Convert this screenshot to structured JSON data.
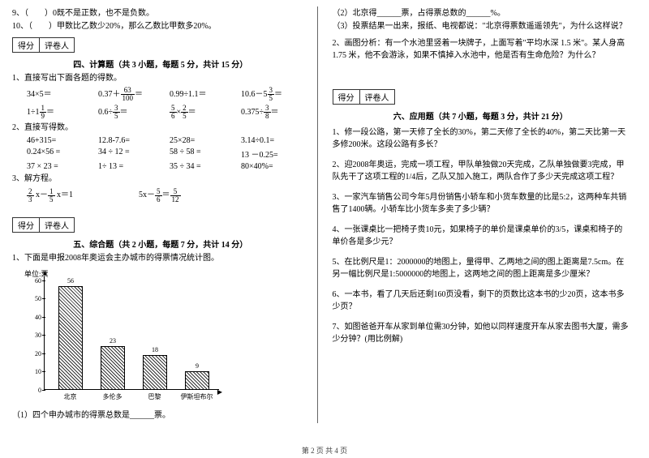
{
  "left": {
    "q9": "9、（　　）0既不是正数，也不是负数。",
    "q10": "10、（　　）甲数比乙数少20%，那么乙数比甲数多20%。",
    "score_label1": "得分",
    "score_label2": "评卷人",
    "section4": "四、计算题（共 3 小题，每题 5 分，共计 15 分）",
    "s4_1": "1、直接写出下面各题的得数。",
    "calc1": {
      "a": "34×5＝",
      "b_pre": "0.37＋",
      "b_frac_n": "63",
      "b_frac_d": "100",
      "b_eq": "＝",
      "c": "0.99÷1.1＝",
      "d_pre": "10.6－5",
      "d_frac_n": "3",
      "d_frac_d": "5",
      "d_eq": "＝"
    },
    "calc2": {
      "a_pre": "1÷1",
      "a_frac_n": "1",
      "a_frac_d": "9",
      "a_eq": "＝",
      "b_pre": "0.6÷",
      "b_frac_n": "3",
      "b_frac_d": "5",
      "b_eq": "＝",
      "c_f1n": "5",
      "c_f1d": "6",
      "c_mid": "×",
      "c_f2n": "2",
      "c_f2d": "5",
      "c_eq": "＝",
      "d_pre": "0.375÷",
      "d_frac_n": "3",
      "d_frac_d": "8",
      "d_eq": "＝"
    },
    "s4_2": "2、直接写得数。",
    "rows2": [
      [
        "46+315=",
        "12.8-7.6=",
        "25×28=",
        "3.14÷0.1="
      ],
      [
        "0.24×56 =",
        "34 ÷ 12 =",
        "58 ÷ 58 =",
        "13 －0.25="
      ],
      [
        "37 × 23 =",
        "1÷ 13 =",
        "35 ÷ 34 =",
        "80×40%="
      ]
    ],
    "s4_3": "3、解方程。",
    "eq3a_f1n": "2",
    "eq3a_f1d": "3",
    "eq3a_mid": " x－",
    "eq3a_f2n": "1",
    "eq3a_f2d": "5",
    "eq3a_end": " x＝1",
    "eq3b_pre": "5x－",
    "eq3b_f1n": "5",
    "eq3b_f1d": "6",
    "eq3b_mid": "＝",
    "eq3b_f2n": "5",
    "eq3b_f2d": "12",
    "section5": "五、综合题（共 2 小题，每题 7 分，共计 14 分）",
    "s5_1": "1、下面是申报2008年奥运会主办城市的得票情况统计图。",
    "chart": {
      "unit": "单位:票",
      "y_max": 60,
      "y_step": 10,
      "categories": [
        "北京",
        "多伦多",
        "巴黎",
        "伊斯坦布尔"
      ],
      "values": [
        56,
        23,
        18,
        9
      ],
      "bar_color_css": "repeating-linear-gradient(45deg, #333 0 1px, transparent 1px 3px)"
    },
    "s5_1b": "（1）四个申办城市的得票总数是______票。"
  },
  "right": {
    "s5_2": "（2）北京得______票，占得票总数的______%。",
    "s5_3": "（3）投票结果一出来，报纸、电视都说：\"北京得票数遥遥领先\"，为什么这样说？",
    "s5_q2": "2、画图分析：有一个水池里竖着一块牌子，上面写着\"平均水深 1.5 米\"。某人身高 1.75 米，他不会游泳，如果不慎掉入水池中，他是否有生命危险？为什么？",
    "section6": "六、应用题（共 7 小题，每题 3 分，共计 21 分）",
    "apps": [
      "1、修一段公路，第一天修了全长的30%，第二天修了全长的40%，第二天比第一天多修200米。这段公路有多长？",
      "2、迎2008年奥运，完成一项工程，甲队单独做20天完成，乙队单独做要3完成，甲队先干了这项工程的1/4后，乙队又加入施工，两队合作了多少天完成这项工程？",
      "3、一家汽车销售公司今年5月份销售小轿车和小货车数量的比是5:2，这两种车共销售了1400辆。小轿车比小货车多卖了多少辆？",
      "4、一张课桌比一把椅子贵10元，如果椅子的单价是课桌单价的3/5，课桌和椅子的单价各是多少元？",
      "5、在比例尺是1：2000000的地图上，量得甲、乙两地之间的图上距离是7.5cm。在另一幅比例尺是1:5000000的地图上，这两地之间的图上距离是多少厘米？",
      "6、一本书，看了几天后还剩160页没看，剩下的页数比这本书的少20页，这本书多少页？",
      "7、如图爸爸开车从家到单位需30分钟，如他以同样速度开车从家去图书大厦，需多少分钟？(用比例解)"
    ]
  },
  "footer": "第 2 页 共 4 页"
}
